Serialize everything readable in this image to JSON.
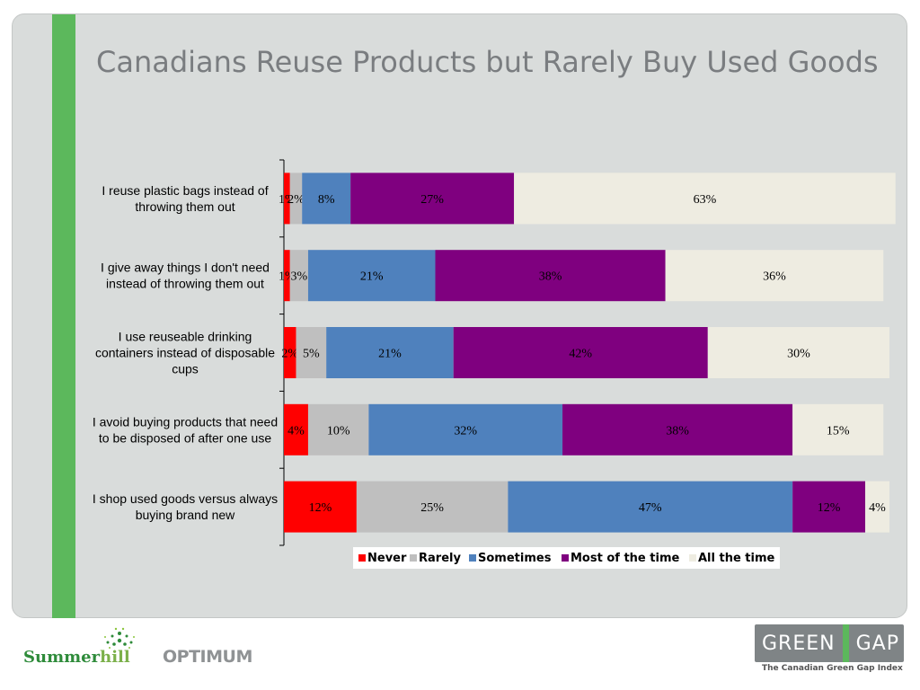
{
  "title": "Canadians Reuse Products but Rarely Buy Used Goods",
  "colors": {
    "panel": "#d9dcdb",
    "accent_bar": "#5cb85c",
    "title": "#7a7d80"
  },
  "chart_data": {
    "type": "bar",
    "orientation": "horizontal",
    "stacked": true,
    "title": "Canadians Reuse Products but Rarely Buy Used Goods",
    "categories": [
      "I reuse plastic bags instead of throwing them out",
      "I give away things I don't need instead of throwing them out",
      "I use reuseable drinking containers instead of disposable cups",
      "I avoid buying products that need to be disposed of after one use",
      "I shop used goods versus always buying brand new"
    ],
    "category_lines": [
      [
        "I reuse plastic bags instead of",
        "throwing them out"
      ],
      [
        "I give away things I don't need",
        "instead of throwing them out"
      ],
      [
        "I use reuseable drinking",
        "containers instead of disposable",
        "cups"
      ],
      [
        "I avoid buying products that need",
        "to be disposed of after one use"
      ],
      [
        "I shop used goods versus always",
        "buying brand new"
      ]
    ],
    "series": [
      {
        "name": "Never",
        "color": "#ff0000",
        "values": [
          1,
          1,
          2,
          4,
          12
        ],
        "labels": [
          "1%",
          "1%",
          "2%",
          "4%",
          "12%"
        ]
      },
      {
        "name": "Rarely",
        "color": "#bfbfbf",
        "values": [
          2,
          3,
          5,
          10,
          25
        ],
        "labels": [
          "2%",
          "3%",
          "5%",
          "10%",
          "25%"
        ]
      },
      {
        "name": "Sometimes",
        "color": "#4f81bd",
        "values": [
          8,
          21,
          21,
          32,
          47
        ],
        "labels": [
          "8%",
          "21%",
          "21%",
          "32%",
          "47%"
        ]
      },
      {
        "name": "Most of the time",
        "color": "#7f007f",
        "values": [
          27,
          38,
          42,
          38,
          12
        ],
        "labels": [
          "27%",
          "38%",
          "42%",
          "38%",
          "12%"
        ]
      },
      {
        "name": "All the time",
        "color": "#eeece1",
        "values": [
          63,
          36,
          30,
          15,
          4
        ],
        "labels": [
          "63%",
          "36%",
          "30%",
          "15%",
          "4%"
        ]
      }
    ],
    "legend_position": "bottom",
    "grid": false,
    "xlim": [
      0,
      100
    ]
  },
  "footer": {
    "summerhill_a": "Summer",
    "summerhill_b": "hill",
    "optimum": "OPTIMUM",
    "greengap_left": "GREEN",
    "greengap_right": "GAP",
    "greengap_tagline": "The Canadian Green Gap Index"
  }
}
